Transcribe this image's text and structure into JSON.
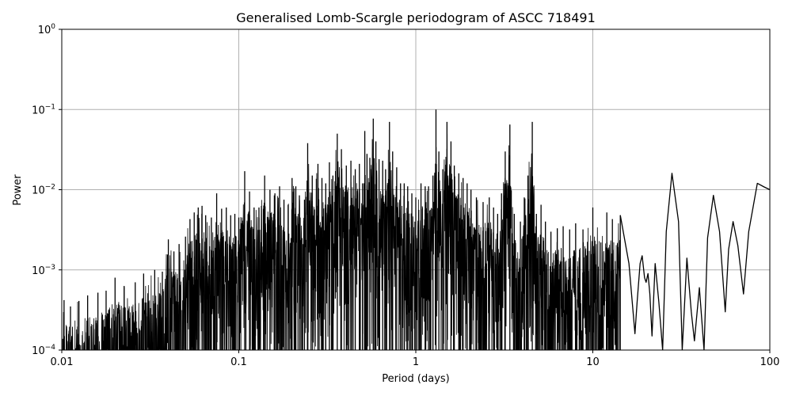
{
  "chart_data": {
    "type": "line",
    "title": "Generalised Lomb-Scargle periodogram of ASCC 718491",
    "xlabel": "Period (days)",
    "ylabel": "Power",
    "xscale": "log",
    "yscale": "log",
    "xlim": [
      0.01,
      100
    ],
    "ylim": [
      0.0001,
      1
    ],
    "grid": true,
    "x_ticks": [
      {
        "value": 0.01,
        "label": "0.01"
      },
      {
        "value": 0.1,
        "label": "0.1"
      },
      {
        "value": 1,
        "label": "1"
      },
      {
        "value": 10,
        "label": "10"
      },
      {
        "value": 100,
        "label": "100"
      }
    ],
    "y_ticks": [
      {
        "value": 0.0001,
        "base": "10",
        "exp": "−4"
      },
      {
        "value": 0.001,
        "base": "10",
        "exp": "−3"
      },
      {
        "value": 0.01,
        "base": "10",
        "exp": "−2"
      },
      {
        "value": 0.1,
        "base": "10",
        "exp": "−1"
      },
      {
        "value": 1,
        "base": "10",
        "exp": "0"
      }
    ],
    "line_color": "#000000",
    "grid_color": "#b0b0b0",
    "series": [
      {
        "peaks": [
          [
            0.0103,
            0.00042
          ],
          [
            0.0112,
            0.00035
          ],
          [
            0.0125,
            0.00041
          ],
          [
            0.014,
            0.00048
          ],
          [
            0.016,
            0.00052
          ],
          [
            0.0178,
            0.00055
          ],
          [
            0.02,
            0.0008
          ],
          [
            0.0225,
            0.00063
          ],
          [
            0.026,
            0.0007
          ],
          [
            0.029,
            0.0009
          ],
          [
            0.0335,
            0.001
          ],
          [
            0.037,
            0.00095
          ],
          [
            0.04,
            0.0024
          ],
          [
            0.043,
            0.0017
          ],
          [
            0.046,
            0.0021
          ],
          [
            0.05,
            0.0026
          ],
          [
            0.053,
            0.0043
          ],
          [
            0.056,
            0.0052
          ],
          [
            0.059,
            0.006
          ],
          [
            0.062,
            0.0063
          ],
          [
            0.065,
            0.0048
          ],
          [
            0.07,
            0.0045
          ],
          [
            0.075,
            0.009
          ],
          [
            0.08,
            0.0058
          ],
          [
            0.085,
            0.006
          ],
          [
            0.09,
            0.0048
          ],
          [
            0.095,
            0.005
          ],
          [
            0.1,
            0.0045
          ],
          [
            0.108,
            0.017
          ],
          [
            0.115,
            0.0095
          ],
          [
            0.122,
            0.006
          ],
          [
            0.13,
            0.006
          ],
          [
            0.14,
            0.015
          ],
          [
            0.15,
            0.01
          ],
          [
            0.16,
            0.009
          ],
          [
            0.17,
            0.011
          ],
          [
            0.18,
            0.0075
          ],
          [
            0.19,
            0.0065
          ],
          [
            0.2,
            0.014
          ],
          [
            0.21,
            0.011
          ],
          [
            0.22,
            0.0085
          ],
          [
            0.235,
            0.0075
          ],
          [
            0.245,
            0.038
          ],
          [
            0.26,
            0.015
          ],
          [
            0.28,
            0.021
          ],
          [
            0.295,
            0.014
          ],
          [
            0.31,
            0.012
          ],
          [
            0.325,
            0.022
          ],
          [
            0.34,
            0.015
          ],
          [
            0.36,
            0.05
          ],
          [
            0.38,
            0.032
          ],
          [
            0.405,
            0.02
          ],
          [
            0.43,
            0.023
          ],
          [
            0.455,
            0.018
          ],
          [
            0.48,
            0.021
          ],
          [
            0.5,
            0.012
          ],
          [
            0.515,
            0.054
          ],
          [
            0.53,
            0.028
          ],
          [
            0.55,
            0.025
          ],
          [
            0.575,
            0.077
          ],
          [
            0.595,
            0.04
          ],
          [
            0.62,
            0.024
          ],
          [
            0.65,
            0.023
          ],
          [
            0.675,
            0.018
          ],
          [
            0.71,
            0.07
          ],
          [
            0.74,
            0.03
          ],
          [
            0.78,
            0.019
          ],
          [
            0.82,
            0.012
          ],
          [
            0.86,
            0.012
          ],
          [
            0.9,
            0.011
          ],
          [
            0.95,
            0.009
          ],
          [
            1.0,
            0.008
          ],
          [
            1.07,
            0.012
          ],
          [
            1.13,
            0.011
          ],
          [
            1.18,
            0.011
          ],
          [
            1.25,
            0.015
          ],
          [
            1.3,
            0.1
          ],
          [
            1.35,
            0.03
          ],
          [
            1.42,
            0.018
          ],
          [
            1.5,
            0.07
          ],
          [
            1.58,
            0.04
          ],
          [
            1.65,
            0.02
          ],
          [
            1.75,
            0.016
          ],
          [
            1.85,
            0.014
          ],
          [
            1.95,
            0.012
          ],
          [
            2.05,
            0.01
          ],
          [
            2.2,
            0.008
          ],
          [
            2.4,
            0.007
          ],
          [
            2.6,
            0.008
          ],
          [
            2.75,
            0.006
          ],
          [
            2.9,
            0.005
          ],
          [
            3.05,
            0.009
          ],
          [
            3.2,
            0.03
          ],
          [
            3.4,
            0.065
          ],
          [
            3.6,
            0.005
          ],
          [
            3.9,
            0.004
          ],
          [
            4.1,
            0.008
          ],
          [
            4.3,
            0.015
          ],
          [
            4.55,
            0.07
          ],
          [
            4.8,
            0.005
          ],
          [
            5.1,
            0.0065
          ],
          [
            5.4,
            0.004
          ],
          [
            5.8,
            0.003
          ],
          [
            6.3,
            0.0033
          ],
          [
            6.8,
            0.0035
          ],
          [
            7.4,
            0.0032
          ],
          [
            8.0,
            0.0038
          ],
          [
            8.8,
            0.0032
          ],
          [
            10.0,
            0.006
          ],
          [
            11.1,
            0.0022
          ],
          [
            12.0,
            0.0052
          ],
          [
            12.9,
            0.0043
          ],
          [
            14.3,
            0.0048
          ],
          [
            19.0,
            0.0015
          ],
          [
            20.5,
            0.0009
          ],
          [
            22.5,
            0.0012
          ],
          [
            28.0,
            0.016
          ],
          [
            34.0,
            0.0014
          ],
          [
            40.0,
            0.0006
          ],
          [
            48.0,
            0.0085
          ],
          [
            62.0,
            0.004
          ],
          [
            85.0,
            0.012
          ],
          [
            100.0,
            0.01
          ]
        ],
        "smooth_curve": [
          [
            14.3,
            0.0048
          ],
          [
            16.0,
            0.0012
          ],
          [
            17.3,
            0.00016
          ],
          [
            17.8,
            0.0004
          ],
          [
            18.5,
            0.0012
          ],
          [
            19.0,
            0.0015
          ],
          [
            19.6,
            0.0008
          ],
          [
            20.0,
            0.0007
          ],
          [
            20.5,
            0.0009
          ],
          [
            21.0,
            0.0005
          ],
          [
            21.6,
            0.00015
          ],
          [
            22.5,
            0.0012
          ],
          [
            23.6,
            0.0004
          ],
          [
            24.8,
            0.0001
          ],
          [
            26.0,
            0.003
          ],
          [
            28.0,
            0.016
          ],
          [
            30.5,
            0.004
          ],
          [
            32.0,
            0.0001
          ],
          [
            34.0,
            0.0014
          ],
          [
            36.0,
            0.0003
          ],
          [
            37.5,
            0.00013
          ],
          [
            40.0,
            0.0006
          ],
          [
            42.5,
            0.0001
          ],
          [
            44.5,
            0.0025
          ],
          [
            48.0,
            0.0085
          ],
          [
            52.0,
            0.003
          ],
          [
            56.0,
            0.0003
          ],
          [
            58.5,
            0.0018
          ],
          [
            62.0,
            0.004
          ],
          [
            66.0,
            0.002
          ],
          [
            71.0,
            0.0005
          ],
          [
            76.0,
            0.003
          ],
          [
            85.0,
            0.012
          ],
          [
            93.0,
            0.0108
          ],
          [
            100.0,
            0.01
          ]
        ]
      }
    ]
  }
}
